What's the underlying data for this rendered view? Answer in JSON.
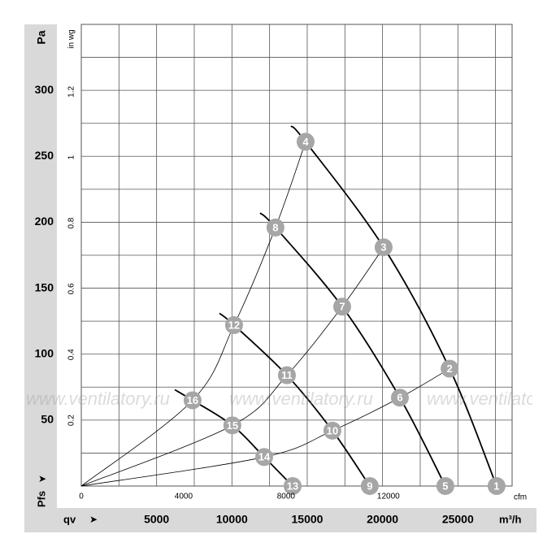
{
  "chart_data": {
    "type": "fan-curve",
    "y_label": "Pa",
    "y2_label": "in wg",
    "x_label": "qv",
    "x_unit": "m³/h",
    "x2_unit": "cfm",
    "pressure_label": "Pfs",
    "watermark": "www.ventilatory.ru",
    "xlim": [
      0,
      28600
    ],
    "xticks": [
      5000,
      10000,
      15000,
      20000,
      25000
    ],
    "xminorticks": [
      2500,
      7500,
      12500,
      17500,
      22500,
      27500
    ],
    "ylim": [
      0,
      350
    ],
    "yticks": [
      50,
      100,
      150,
      200,
      250,
      300
    ],
    "yminorticks": [
      25,
      75,
      125,
      175,
      225,
      275,
      325
    ],
    "x2lim": [
      0,
      16834
    ],
    "x2ticks": [
      0,
      4000,
      8000,
      12000
    ],
    "y2lim": [
      0,
      1.405
    ],
    "y2ticks": [
      0.2,
      0.4,
      0.6,
      0.8,
      1,
      1.2
    ],
    "series": [
      {
        "name": "fan-1",
        "role": "fan",
        "x": [
          13920,
          14890,
          20070,
          24450,
          27570
        ],
        "values": [
          273,
          261,
          181,
          89,
          0
        ],
        "point_labels": [
          null,
          "4",
          "3",
          "2",
          "1"
        ]
      },
      {
        "name": "fan-2",
        "role": "fan",
        "x": [
          11870,
          12890,
          17320,
          21150,
          24170
        ],
        "values": [
          207,
          196,
          136,
          67,
          0
        ],
        "point_labels": [
          null,
          "8",
          "7",
          "6",
          "5"
        ]
      },
      {
        "name": "fan-3",
        "role": "fan",
        "x": [
          9170,
          10140,
          13650,
          16670,
          19150
        ],
        "values": [
          131,
          122,
          84,
          42,
          0
        ],
        "point_labels": [
          null,
          "12",
          "11",
          "10",
          "9"
        ]
      },
      {
        "name": "fan-4",
        "role": "fan",
        "x": [
          6210,
          7390,
          10030,
          12140,
          14030
        ],
        "values": [
          73,
          65,
          46,
          22,
          0
        ],
        "point_labels": [
          null,
          "16",
          "15",
          "14",
          "13"
        ]
      },
      {
        "name": "system-1",
        "role": "system",
        "x": [
          0,
          7390,
          10140,
          12890,
          14890
        ],
        "values": [
          0,
          65,
          122,
          196,
          261
        ]
      },
      {
        "name": "system-2",
        "role": "system",
        "x": [
          0,
          10030,
          13650,
          17320,
          20070
        ],
        "values": [
          0,
          46,
          84,
          136,
          181
        ]
      },
      {
        "name": "system-3",
        "role": "system",
        "x": [
          0,
          12140,
          16670,
          21150,
          24450
        ],
        "values": [
          0,
          22,
          42,
          67,
          89
        ]
      }
    ]
  }
}
